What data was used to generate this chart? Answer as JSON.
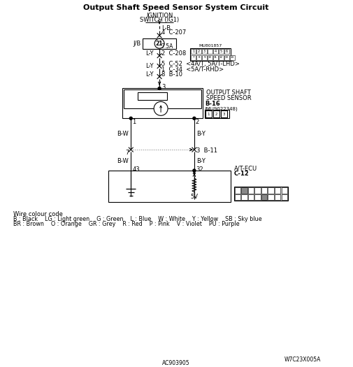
{
  "title": "Output Shaft Speed Sensor System Circuit",
  "bg_color": "#ffffff",
  "line_color": "#000000",
  "wire_color_line1": "Wire colour code",
  "wire_color_line2": "B : Black    LG : Light green    G : Green    L : Blue    W : White    Y : Yellow    SB : Sky blue",
  "wire_color_line3": "BR : Brown    O : Orange    GR : Grey    R : Red    P : Pink    V : Violet    PU : Purple",
  "code1": "W7C23X005A",
  "code2": "AC903905"
}
